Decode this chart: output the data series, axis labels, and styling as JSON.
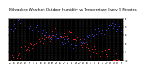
{
  "title": "Milwaukee Weather: Outdoor Humidity vs Temperature Every 5 Minutes",
  "title_fontsize": 3.2,
  "background_color": "#ffffff",
  "plot_bg_color": "#000000",
  "grid_color": "#555555",
  "blue_color": "#4444ff",
  "red_color": "#ff2222",
  "ylim_left": [
    0,
    100
  ],
  "ylim_right": [
    -20,
    80
  ],
  "num_points": 120,
  "x_ticks_count": 30,
  "yticks_left": [
    0,
    20,
    40,
    60,
    80,
    100
  ],
  "yticks_right": [
    -20,
    0,
    20,
    40,
    60,
    80
  ]
}
